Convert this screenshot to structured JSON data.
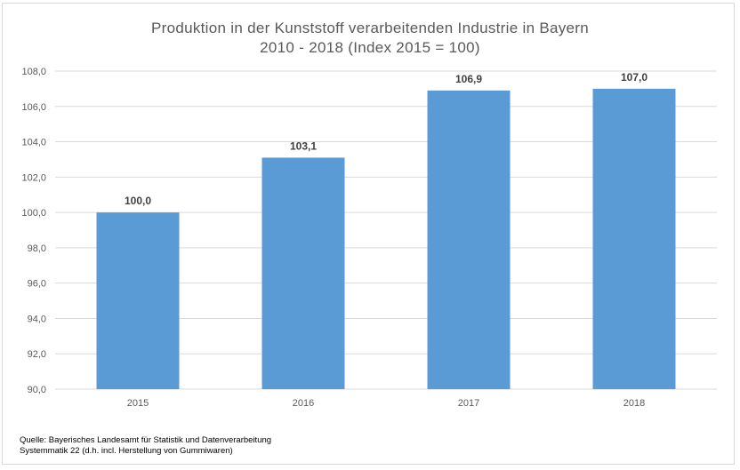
{
  "chart_data": {
    "type": "bar",
    "title": "Produktion in der Kunststoff verarbeitenden Industrie in Bayern",
    "subtitle": "2010 - 2018 (Index 2015 = 100)",
    "xlabel": "",
    "ylabel": "",
    "categories": [
      "2015",
      "2016",
      "2017",
      "2018"
    ],
    "values": [
      100.0,
      103.1,
      106.9,
      107.0
    ],
    "value_labels": [
      "100,0",
      "103,1",
      "106,9",
      "107,0"
    ],
    "ylim": [
      90,
      108
    ],
    "yticks": [
      90,
      92,
      94,
      96,
      98,
      100,
      102,
      104,
      106,
      108
    ],
    "ytick_labels": [
      "90,0",
      "92,0",
      "94,0",
      "96,0",
      "98,0",
      "100,0",
      "102,0",
      "104,0",
      "106,0",
      "108,0"
    ],
    "grid": true,
    "legend": "none",
    "bar_color": "#5b9bd5",
    "grid_color": "#d9d9d9"
  },
  "source": {
    "line1": "Quelle:  Bayerisches Landesamt für Statistik und Datenverarbeitung",
    "line2": "Systemmatik 22 (d.h. incl. Herstellung von Gummiwaren)"
  }
}
